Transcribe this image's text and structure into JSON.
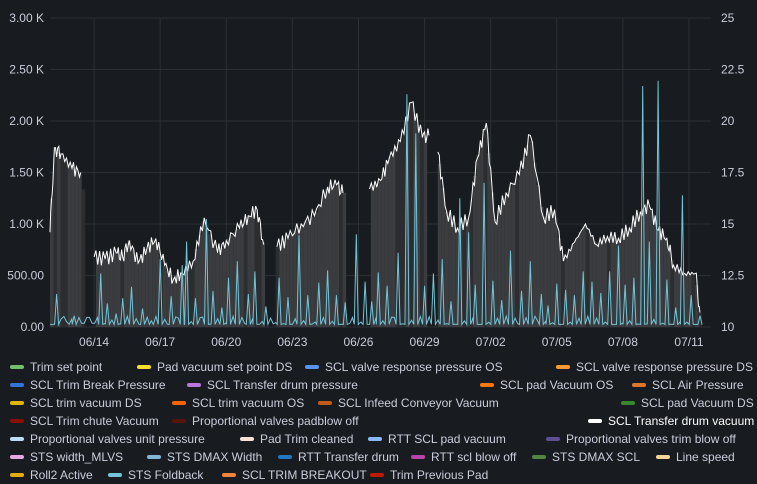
{
  "chart_data": {
    "type": "line",
    "y_left": {
      "ticks": [
        "0.00",
        "500.00",
        "1.00 K",
        "1.50 K",
        "2.00 K",
        "2.50 K",
        "3.00 K"
      ],
      "range": [
        0,
        3000
      ]
    },
    "y_right": {
      "ticks": [
        "10",
        "12.5",
        "15",
        "17.5",
        "20",
        "22.5",
        "25"
      ],
      "range": [
        10,
        25
      ]
    },
    "x_ticks": [
      "06/14",
      "06/17",
      "06/20",
      "06/23",
      "06/26",
      "06/29",
      "07/02",
      "07/05",
      "07/08",
      "07/11"
    ],
    "x_range_days": [
      0,
      30
    ],
    "grid": true,
    "legend_placement": "bottom",
    "series": [
      {
        "name": "SCL Transfer drum vacuum",
        "axis": "right",
        "color": "#ffffff",
        "gaps": [
          [
            1.6,
            2.0
          ],
          [
            9.8,
            10.3
          ],
          [
            13.4,
            14.5
          ],
          [
            17.2,
            17.6
          ],
          [
            29.6,
            30
          ]
        ],
        "points": [
          [
            0.0,
            14.6
          ],
          [
            0.2,
            18.7
          ],
          [
            0.5,
            18.4
          ],
          [
            1.0,
            17.7
          ],
          [
            1.4,
            17.5
          ],
          [
            2.0,
            13.4
          ],
          [
            2.5,
            13.3
          ],
          [
            3.0,
            13.6
          ],
          [
            3.3,
            13.4
          ],
          [
            3.6,
            14.2
          ],
          [
            4.0,
            13.1
          ],
          [
            4.4,
            13.8
          ],
          [
            4.8,
            14.3
          ],
          [
            5.2,
            13.0
          ],
          [
            5.6,
            12.3
          ],
          [
            6.0,
            12.6
          ],
          [
            6.5,
            13.2
          ],
          [
            7.0,
            15.3
          ],
          [
            7.6,
            13.6
          ],
          [
            8.0,
            14.2
          ],
          [
            8.6,
            14.8
          ],
          [
            9.0,
            15.4
          ],
          [
            9.4,
            15.7
          ],
          [
            9.7,
            14.0
          ],
          [
            10.3,
            13.9
          ],
          [
            10.8,
            14.3
          ],
          [
            11.4,
            15.0
          ],
          [
            12.0,
            15.4
          ],
          [
            12.6,
            16.8
          ],
          [
            13.0,
            16.9
          ],
          [
            13.3,
            16.5
          ],
          [
            14.5,
            16.7
          ],
          [
            15.0,
            17.1
          ],
          [
            15.4,
            18.2
          ],
          [
            15.9,
            19.0
          ],
          [
            16.4,
            20.9
          ],
          [
            16.9,
            19.2
          ],
          [
            17.2,
            19.3
          ],
          [
            17.6,
            18.5
          ],
          [
            18.0,
            15.6
          ],
          [
            18.5,
            14.8
          ],
          [
            19.0,
            15.3
          ],
          [
            19.4,
            18.2
          ],
          [
            19.8,
            19.9
          ],
          [
            20.2,
            15.1
          ],
          [
            20.7,
            16.5
          ],
          [
            21.3,
            17.4
          ],
          [
            21.8,
            19.3
          ],
          [
            22.4,
            15.3
          ],
          [
            22.9,
            15.7
          ],
          [
            23.3,
            13.2
          ],
          [
            23.8,
            14.1
          ],
          [
            24.3,
            15.0
          ],
          [
            24.8,
            14.0
          ],
          [
            25.3,
            14.4
          ],
          [
            25.8,
            14.3
          ],
          [
            26.3,
            14.8
          ],
          [
            26.8,
            15.6
          ],
          [
            27.2,
            15.9
          ],
          [
            27.6,
            14.7
          ],
          [
            28.0,
            14.3
          ],
          [
            28.3,
            13.0
          ],
          [
            28.8,
            12.6
          ],
          [
            29.3,
            12.6
          ],
          [
            29.5,
            10.7
          ]
        ]
      },
      {
        "name": "STS Foldback",
        "axis": "left",
        "color": "#73c4d6",
        "base": 25,
        "spikes": [
          [
            0.3,
            320
          ],
          [
            1.1,
            110
          ],
          [
            2.3,
            520
          ],
          [
            2.6,
            230
          ],
          [
            3.0,
            130
          ],
          [
            3.3,
            280
          ],
          [
            3.7,
            390
          ],
          [
            4.2,
            180
          ],
          [
            4.6,
            60
          ],
          [
            5.0,
            660
          ],
          [
            5.5,
            300
          ],
          [
            6.0,
            600
          ],
          [
            6.2,
            830
          ],
          [
            6.6,
            280
          ],
          [
            7.1,
            1050
          ],
          [
            7.4,
            350
          ],
          [
            7.8,
            190
          ],
          [
            8.1,
            480
          ],
          [
            8.5,
            640
          ],
          [
            9.0,
            320
          ],
          [
            9.3,
            540
          ],
          [
            9.8,
            200
          ],
          [
            10.4,
            480
          ],
          [
            10.8,
            290
          ],
          [
            11.3,
            890
          ],
          [
            11.7,
            310
          ],
          [
            12.2,
            430
          ],
          [
            12.6,
            550
          ],
          [
            13.0,
            310
          ],
          [
            13.4,
            240
          ],
          [
            13.9,
            900
          ],
          [
            14.3,
            440
          ],
          [
            14.6,
            250
          ],
          [
            14.9,
            530
          ],
          [
            15.3,
            400
          ],
          [
            15.8,
            720
          ],
          [
            16.2,
            2260
          ],
          [
            16.6,
            1880
          ],
          [
            17.0,
            400
          ],
          [
            17.4,
            520
          ],
          [
            17.8,
            660
          ],
          [
            18.2,
            250
          ],
          [
            18.6,
            1250
          ],
          [
            19.0,
            920
          ],
          [
            19.3,
            410
          ],
          [
            19.7,
            1400
          ],
          [
            20.1,
            450
          ],
          [
            20.5,
            260
          ],
          [
            20.9,
            740
          ],
          [
            21.4,
            350
          ],
          [
            21.8,
            640
          ],
          [
            22.3,
            320
          ],
          [
            22.6,
            210
          ],
          [
            23.0,
            420
          ],
          [
            23.4,
            360
          ],
          [
            23.8,
            310
          ],
          [
            24.2,
            540
          ],
          [
            24.6,
            440
          ],
          [
            25.0,
            330
          ],
          [
            25.4,
            540
          ],
          [
            25.8,
            790
          ],
          [
            26.1,
            410
          ],
          [
            26.5,
            480
          ],
          [
            26.9,
            2340
          ],
          [
            27.2,
            830
          ],
          [
            27.6,
            2390
          ],
          [
            28.0,
            460
          ],
          [
            28.4,
            190
          ],
          [
            28.7,
            1280
          ],
          [
            29.1,
            310
          ],
          [
            29.5,
            110
          ]
        ]
      }
    ]
  },
  "legend": [
    {
      "label": "Trim set point",
      "color": "#73bf69"
    },
    {
      "label": "Pad vacuum set point DS",
      "color": "#fade2a"
    },
    {
      "label": "SCL valve response pressure OS",
      "color": "#5794f2"
    },
    {
      "label": "SCL valve response pressure DS",
      "color": "#ff9830"
    },
    {
      "label": "SCL Trim Break Pressure",
      "color": "#3274d9"
    },
    {
      "label": "SCL Transfer drum pressure",
      "color": "#b877d9"
    },
    {
      "label": "SCL pad Vacuum OS",
      "color": "#ff780a"
    },
    {
      "label": "SCL Air Pressure",
      "color": "#e0752d"
    },
    {
      "label": "SCL trim vacuum DS",
      "color": "#e0b400"
    },
    {
      "label": "SCL trim vacuum OS",
      "color": "#fa6400"
    },
    {
      "label": "SCL Infeed Conveyor Vacuum",
      "color": "#c15c17"
    },
    {
      "label": "SCL pad Vacuum DS",
      "color": "#37872d"
    },
    {
      "label": "SCL Trim chute Vacuum",
      "color": "#890f02"
    },
    {
      "label": "Proportional valves padblow off",
      "color": "#58140c"
    },
    {
      "label": "SCL Transfer drum vacuum",
      "color": "#ffffff"
    },
    {
      "label": "Proportional valves unit pressure",
      "color": "#badff4"
    },
    {
      "label": "Pad Trim cleaned",
      "color": "#f9e2d2"
    },
    {
      "label": "RTT SCL pad vacuum",
      "color": "#8ab8ff"
    },
    {
      "label": "Proportional valves trim blow off",
      "color": "#614d93"
    },
    {
      "label": "STS width_MLVS",
      "color": "#e5a8e2"
    },
    {
      "label": "STS DMAX Width",
      "color": "#82b5d8"
    },
    {
      "label": "RTT Transfer drum",
      "color": "#1f78c1"
    },
    {
      "label": "RTT scl blow off",
      "color": "#ba43a9"
    },
    {
      "label": "STS DMAX SCL",
      "color": "#508642"
    },
    {
      "label": "Line speed",
      "color": "#f4d598"
    },
    {
      "label": "Roll2 Active",
      "color": "#e5ac0e"
    },
    {
      "label": "STS Foldback",
      "color": "#73c4d6"
    },
    {
      "label": "SCL TRIM BREAKOUT",
      "color": "#ef843c"
    },
    {
      "label": "Trim Previous Pad",
      "color": "#bf1b00"
    }
  ]
}
